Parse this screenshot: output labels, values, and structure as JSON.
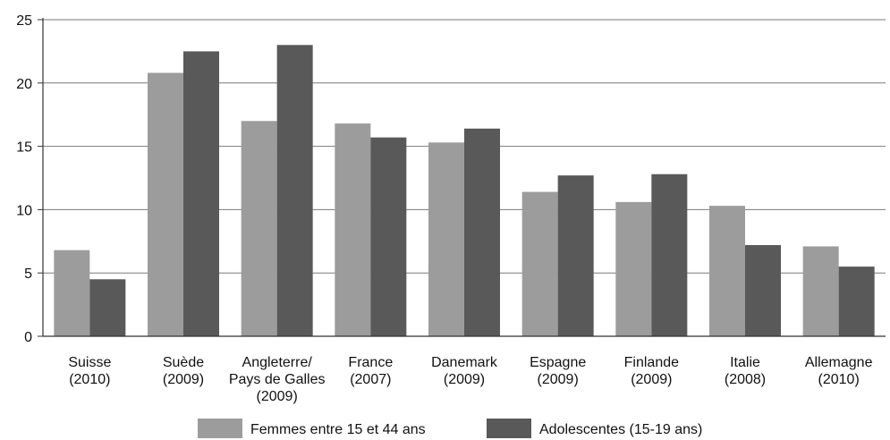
{
  "chart_data": {
    "type": "bar",
    "title": "",
    "xlabel": "",
    "ylabel": "",
    "ylim": [
      0,
      25
    ],
    "yticks": [
      0,
      5,
      10,
      15,
      20,
      25
    ],
    "grid": true,
    "legend_position": "bottom",
    "categories": [
      [
        "Suisse",
        "(2010)"
      ],
      [
        "Suède",
        "(2009)"
      ],
      [
        "Angleterre/",
        "Pays de Galles",
        "(2009)"
      ],
      [
        "France",
        "(2007)"
      ],
      [
        "Danemark",
        "(2009)"
      ],
      [
        "Espagne",
        "(2009)"
      ],
      [
        "Finlande",
        "(2009)"
      ],
      [
        "Italie",
        "(2008)"
      ],
      [
        "Allemagne",
        "(2010)"
      ]
    ],
    "series": [
      {
        "name": "Femmes entre 15 et 44 ans",
        "color": "#9c9c9c",
        "values": [
          6.8,
          20.8,
          17.0,
          16.8,
          15.3,
          11.4,
          10.6,
          10.3,
          7.1
        ]
      },
      {
        "name": "Adolescentes (15-19 ans)",
        "color": "#595959",
        "values": [
          4.5,
          22.5,
          23.0,
          15.7,
          16.4,
          12.7,
          12.8,
          7.2,
          5.5
        ]
      }
    ]
  }
}
